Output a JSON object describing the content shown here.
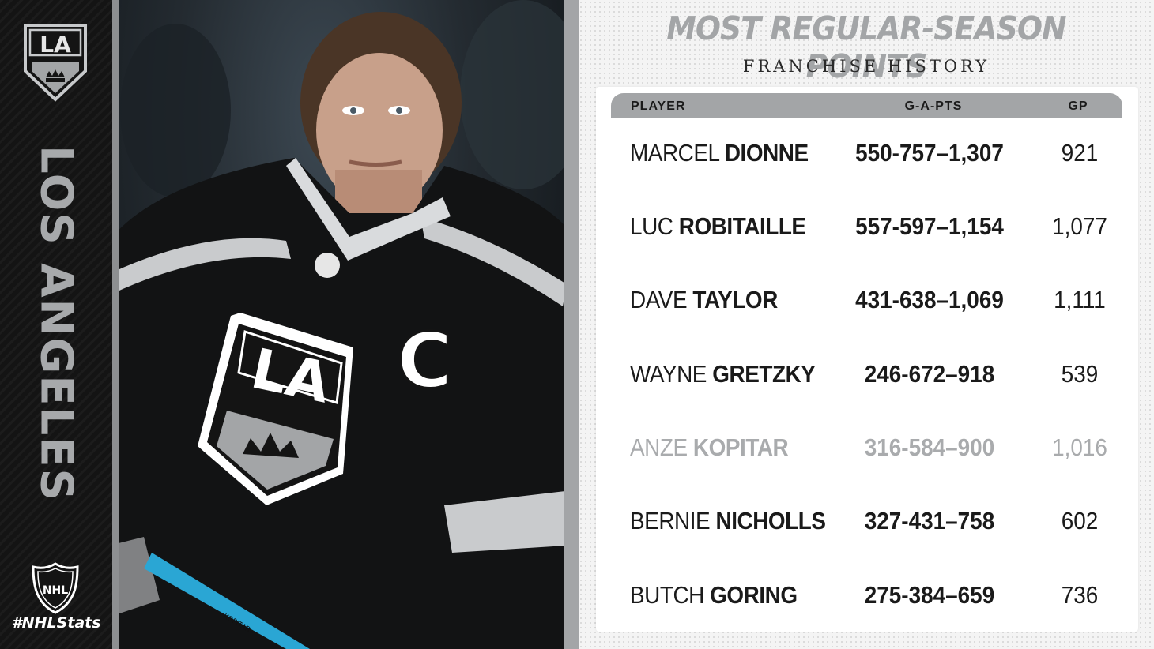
{
  "sidebar": {
    "logo_text": "LA",
    "team_name": "LOS ANGELES",
    "league_logo_text": "NHL",
    "hashtag": "#NHLStats"
  },
  "header": {
    "title": "MOST REGULAR-SEASON POINTS",
    "subtitle": "FRANCHISE HISTORY"
  },
  "table": {
    "columns": {
      "player": "PLAYER",
      "gap": "G-A-PTS",
      "gp": "GP"
    },
    "rows": [
      {
        "first": "MARCEL",
        "last": "DIONNE",
        "stats": "550-757–1,307",
        "gp": "921",
        "highlight": false
      },
      {
        "first": "LUC",
        "last": "ROBITAILLE",
        "stats": "557-597–1,154",
        "gp": "1,077",
        "highlight": false
      },
      {
        "first": "DAVE",
        "last": "TAYLOR",
        "stats": "431-638–1,069",
        "gp": "1,111",
        "highlight": false
      },
      {
        "first": "WAYNE",
        "last": "GRETZKY",
        "stats": "246-672–918",
        "gp": "539",
        "highlight": false
      },
      {
        "first": "ANZE",
        "last": "KOPITAR",
        "stats": "316-584–900",
        "gp": "1,016",
        "highlight": true
      },
      {
        "first": "BERNIE",
        "last": "NICHOLLS",
        "stats": "327-431–758",
        "gp": "602",
        "highlight": false
      },
      {
        "first": "BUTCH",
        "last": "GORING",
        "stats": "275-384–659",
        "gp": "736",
        "highlight": false
      }
    ]
  },
  "photo": {
    "jersey_logo_text": "LA",
    "captain_letter": "C",
    "stick_text": "KOPITAR"
  },
  "colors": {
    "silver": "#a3a5a7",
    "black": "#141414",
    "muted_row": "#a9abad"
  }
}
